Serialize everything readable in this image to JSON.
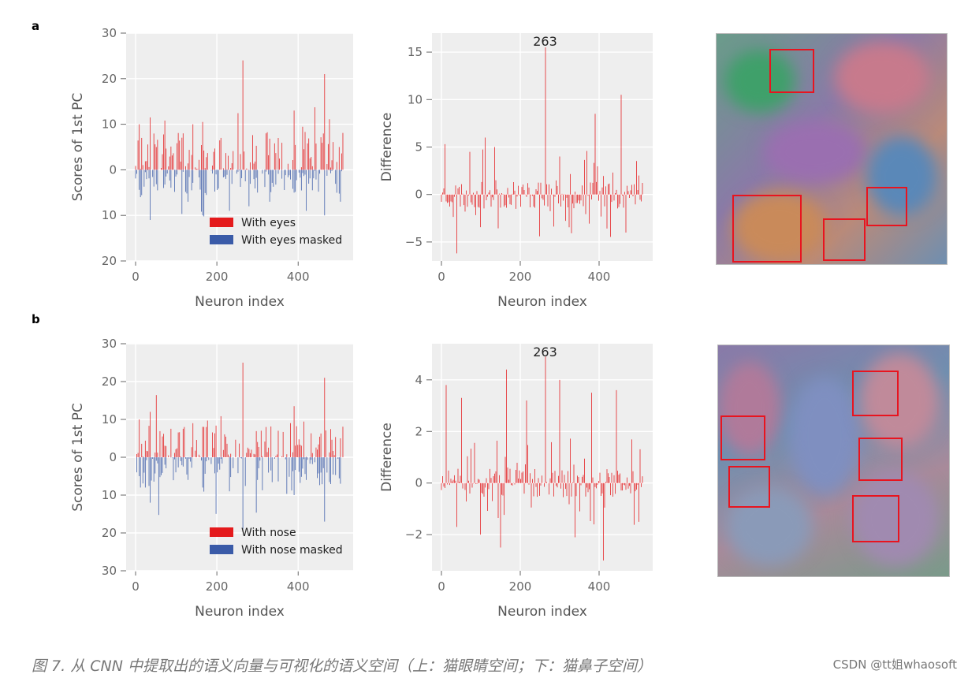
{
  "panels": [
    {
      "letter": "a"
    },
    {
      "letter": "b"
    }
  ],
  "colors": {
    "red": "#e41a1c",
    "blue": "#3a5ba8",
    "plot_bg": "#eeeeee",
    "highlight": "#e8141f"
  },
  "chart_data": [
    {
      "type": "bar",
      "panel": "a",
      "ylabel": "Scores of 1st PC",
      "xlabel": "Neuron index",
      "xlim": [
        0,
        512
      ],
      "ylim": [
        -20,
        30
      ],
      "x_ticks": [
        0,
        200,
        400
      ],
      "y_ticks": [
        30,
        20,
        10,
        0,
        -10,
        -20
      ],
      "y_tick_labels": [
        "30",
        "20",
        "10",
        "0",
        "10",
        "20"
      ],
      "legend": [
        "With eyes",
        "With eyes masked"
      ],
      "legend_position": "bottom-right",
      "series": [
        {
          "name": "With eyes",
          "color": "#e41a1c",
          "peaks": [
            [
              8,
              10
            ],
            [
              15,
              7
            ],
            [
              35,
              11.5
            ],
            [
              50,
              5
            ],
            [
              118,
              8
            ],
            [
              140,
              10
            ],
            [
              165,
              10.5
            ],
            [
              210,
              7
            ],
            [
              263,
              24
            ],
            [
              320,
              8
            ],
            [
              350,
              7
            ],
            [
              390,
              13
            ],
            [
              465,
              21
            ],
            [
              500,
              5
            ]
          ]
        },
        {
          "name": "With eyes masked",
          "color": "#3a5ba8",
          "peaks": [
            [
              12,
              -6
            ],
            [
              35,
              -11
            ],
            [
              70,
              -4
            ],
            [
              130,
              -7
            ],
            [
              165,
              -10
            ],
            [
              230,
              -9
            ],
            [
              280,
              -8
            ],
            [
              300,
              -5
            ],
            [
              330,
              -7
            ],
            [
              390,
              -5
            ],
            [
              420,
              -9
            ],
            [
              465,
              -10
            ],
            [
              505,
              -7
            ]
          ]
        }
      ]
    },
    {
      "type": "bar",
      "panel": "a",
      "ylabel": "Difference",
      "xlabel": "Neuron index",
      "xlim": [
        0,
        512
      ],
      "ylim": [
        -7,
        17
      ],
      "x_ticks": [
        0,
        200,
        400
      ],
      "y_ticks": [
        15,
        10,
        5,
        0,
        -5
      ],
      "y_tick_labels": [
        "15",
        "10",
        "5",
        "0",
        "−5"
      ],
      "annotation": {
        "text": "263",
        "x": 263
      },
      "series": [
        {
          "color": "#e41a1c",
          "peaks": [
            [
              8,
              5.3
            ],
            [
              40,
              -6.2
            ],
            [
              110,
              6
            ],
            [
              135,
              5
            ],
            [
              263,
              15.5
            ],
            [
              300,
              4
            ],
            [
              390,
              8.5
            ],
            [
              455,
              10.5
            ],
            [
              500,
              2
            ]
          ]
        }
      ]
    },
    {
      "type": "bar",
      "panel": "b",
      "ylabel": "Scores of 1st PC",
      "xlabel": "Neuron index",
      "xlim": [
        0,
        512
      ],
      "ylim": [
        -30,
        30
      ],
      "x_ticks": [
        0,
        200,
        400
      ],
      "y_ticks": [
        30,
        20,
        10,
        0,
        -10,
        -20,
        -30
      ],
      "y_tick_labels": [
        "30",
        "20",
        "10",
        "0",
        "10",
        "20",
        "30"
      ],
      "legend": [
        "With nose",
        "With nose masked"
      ],
      "legend_position": "bottom-right",
      "series": [
        {
          "name": "With nose",
          "color": "#e41a1c",
          "peaks": [
            [
              8,
              10
            ],
            [
              35,
              12
            ],
            [
              120,
              8
            ],
            [
              140,
              9
            ],
            [
              175,
              8
            ],
            [
              263,
              25
            ],
            [
              320,
              8
            ],
            [
              350,
              7
            ],
            [
              390,
              13.5
            ],
            [
              465,
              21
            ],
            [
              505,
              5
            ]
          ]
        },
        {
          "name": "With nose masked",
          "color": "#3a5ba8",
          "peaks": [
            [
              12,
              -8
            ],
            [
              35,
              -12
            ],
            [
              130,
              -6
            ],
            [
              165,
              -8
            ],
            [
              230,
              -9
            ],
            [
              263,
              -19
            ],
            [
              300,
              -6
            ],
            [
              390,
              -10
            ],
            [
              420,
              -6
            ],
            [
              465,
              -17
            ],
            [
              505,
              -7
            ]
          ]
        }
      ]
    },
    {
      "type": "bar",
      "panel": "b",
      "ylabel": "Difference",
      "xlabel": "Neuron index",
      "xlim": [
        0,
        512
      ],
      "ylim": [
        -3.4,
        5.4
      ],
      "x_ticks": [
        0,
        200,
        400
      ],
      "y_ticks": [
        4,
        2,
        0,
        -2
      ],
      "y_tick_labels": [
        "4",
        "2",
        "0",
        "−2"
      ],
      "annotation": {
        "text": "263",
        "x": 263
      },
      "series": [
        {
          "color": "#e41a1c",
          "peaks": [
            [
              12,
              3.8
            ],
            [
              40,
              -1.7
            ],
            [
              50,
              3.3
            ],
            [
              100,
              -2
            ],
            [
              150,
              -2.5
            ],
            [
              165,
              4.4
            ],
            [
              215,
              3.2
            ],
            [
              263,
              4.9
            ],
            [
              300,
              4
            ],
            [
              340,
              -2.1
            ],
            [
              380,
              3.5
            ],
            [
              410,
              -3
            ],
            [
              445,
              3.6
            ],
            [
              500,
              -1.5
            ]
          ]
        }
      ]
    }
  ],
  "images": [
    {
      "panel": "a",
      "highlight_count": 4
    },
    {
      "panel": "b",
      "highlight_count": 5
    }
  ],
  "caption": "图 7. 从 CNN 中提取出的语义向量与可视化的语义空间（上：猫眼睛空间；下：猫鼻子空间）",
  "watermark": "CSDN @tt姐whaosoft"
}
